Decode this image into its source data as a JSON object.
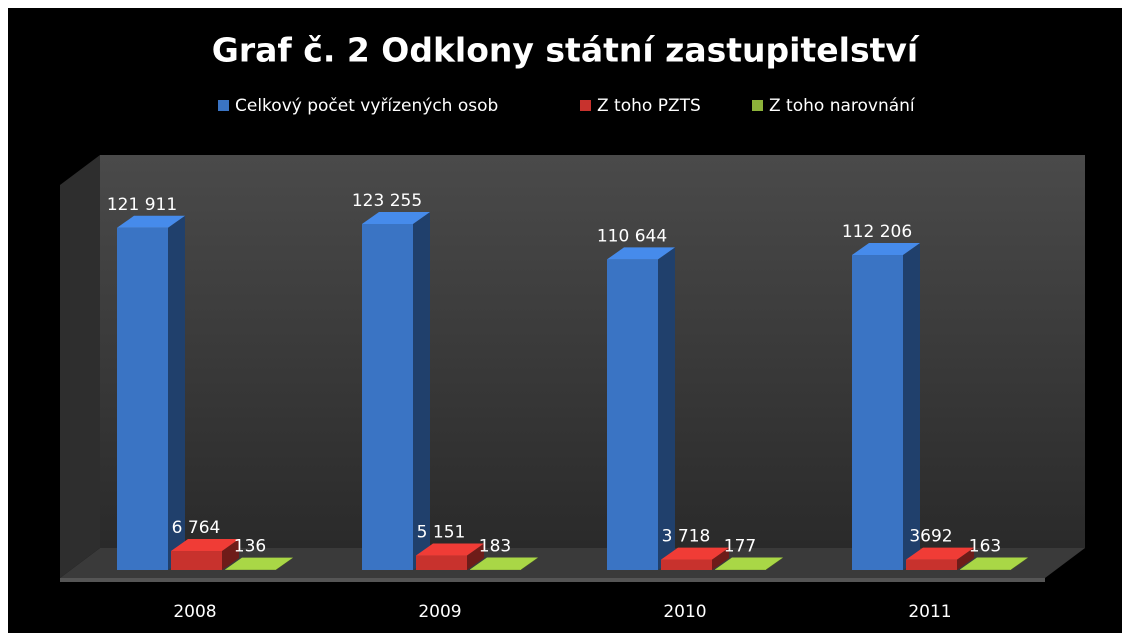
{
  "chart_data": {
    "type": "bar3d",
    "title": "Graf č. 2 Odklony státní zastupitelství",
    "categories": [
      "2008",
      "2009",
      "2010",
      "2011"
    ],
    "series": [
      {
        "name": "Celkový počet vyřízených osob",
        "color": "#3a74c4",
        "values": [
          121911,
          123255,
          110644,
          112206
        ],
        "value_labels": [
          "121 911",
          "123 255",
          "110 644",
          "112 206"
        ]
      },
      {
        "name": "Z toho PZTS",
        "color": "#c8322d",
        "values": [
          6764,
          5151,
          3718,
          3692
        ],
        "value_labels": [
          "6 764",
          "5 151",
          "3 718",
          "3692"
        ]
      },
      {
        "name": "Z toho narovnání",
        "color": "#8db33a",
        "values": [
          136,
          183,
          177,
          163
        ]
      }
    ],
    "legend": "top"
  }
}
